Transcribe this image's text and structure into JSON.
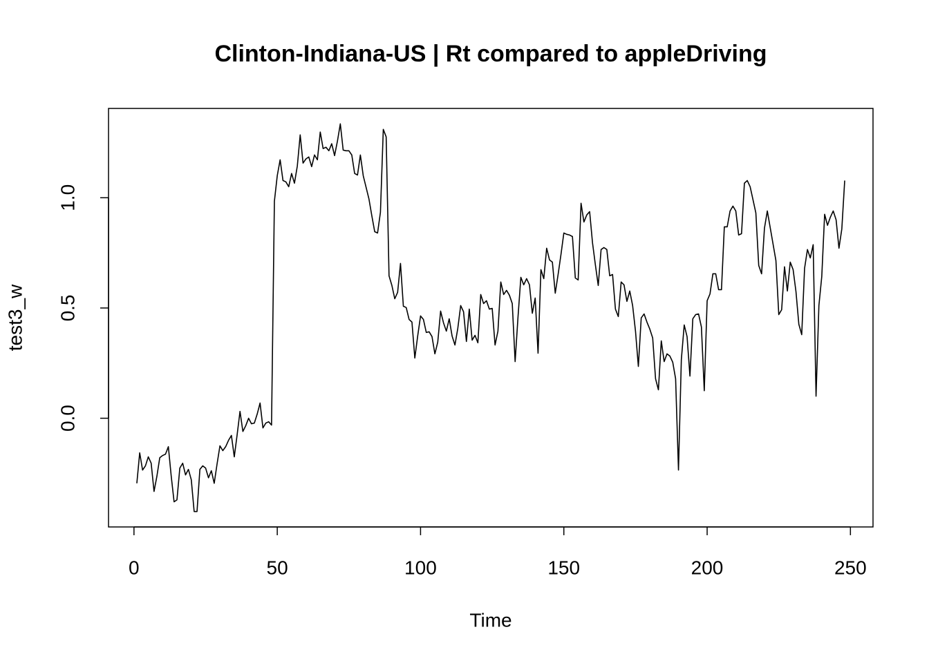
{
  "chart_data": {
    "type": "line",
    "title": "Clinton-Indiana-US | Rt compared to appleDriving",
    "x_label": "Time",
    "y_label": "test3_w",
    "x": [
      1,
      2,
      3,
      4,
      5,
      6,
      7,
      8,
      9,
      10,
      11,
      12,
      13,
      14,
      15,
      16,
      17,
      18,
      19,
      20,
      21,
      22,
      23,
      24,
      25,
      26,
      27,
      28,
      29,
      30,
      31,
      32,
      33,
      34,
      35,
      36,
      37,
      38,
      39,
      40,
      41,
      42,
      43,
      44,
      45,
      46,
      47,
      48,
      49,
      50,
      51,
      52,
      53,
      54,
      55,
      56,
      57,
      58,
      59,
      60,
      61,
      62,
      63,
      64,
      65,
      66,
      67,
      68,
      69,
      70,
      71,
      72,
      73,
      74,
      75,
      76,
      77,
      78,
      79,
      80,
      81,
      82,
      83,
      84,
      85,
      86,
      87,
      88,
      89,
      90,
      91,
      92,
      93,
      94,
      95,
      96,
      97,
      98,
      99,
      100,
      101,
      102,
      103,
      104,
      105,
      106,
      107,
      108,
      109,
      110,
      111,
      112,
      113,
      114,
      115,
      116,
      117,
      118,
      119,
      120,
      121,
      122,
      123,
      124,
      125,
      126,
      127,
      128,
      129,
      130,
      131,
      132,
      133,
      134,
      135,
      136,
      137,
      138,
      139,
      140,
      141,
      142,
      143,
      144,
      145,
      146,
      147,
      148,
      149,
      150,
      151,
      152,
      153,
      154,
      155,
      156,
      157,
      158,
      159,
      160,
      161,
      162,
      163,
      164,
      165,
      166,
      167,
      168,
      169,
      170,
      171,
      172,
      173,
      174,
      175,
      176,
      177,
      178,
      179,
      180,
      181,
      182,
      183,
      184,
      185,
      186,
      187,
      188,
      189,
      190,
      191,
      192,
      193,
      194,
      195,
      196,
      197,
      198,
      199,
      200,
      201,
      202,
      203,
      204,
      205,
      206,
      207,
      208,
      209,
      210,
      211,
      212,
      213,
      214,
      215,
      216,
      217,
      218,
      219,
      220,
      221,
      222,
      223,
      224,
      225,
      226,
      227,
      228,
      229,
      230,
      231,
      232,
      233,
      234,
      235,
      236,
      237,
      238,
      239,
      240,
      241,
      242,
      243,
      244,
      245,
      246,
      247,
      248
    ],
    "series": [
      {
        "name": "test3_w",
        "color": "#000000",
        "values": [
          -0.295,
          -0.157,
          -0.235,
          -0.216,
          -0.175,
          -0.204,
          -0.332,
          -0.263,
          -0.179,
          -0.169,
          -0.163,
          -0.129,
          -0.263,
          -0.379,
          -0.37,
          -0.226,
          -0.204,
          -0.257,
          -0.232,
          -0.279,
          -0.423,
          -0.423,
          -0.232,
          -0.216,
          -0.226,
          -0.27,
          -0.238,
          -0.295,
          -0.207,
          -0.125,
          -0.147,
          -0.129,
          -0.1,
          -0.078,
          -0.175,
          -0.075,
          0.031,
          -0.06,
          -0.034,
          0.0,
          -0.025,
          -0.022,
          0.019,
          0.069,
          -0.044,
          -0.022,
          -0.016,
          -0.031,
          0.984,
          1.1,
          1.172,
          1.078,
          1.072,
          1.05,
          1.11,
          1.066,
          1.144,
          1.285,
          1.157,
          1.176,
          1.185,
          1.141,
          1.194,
          1.172,
          1.298,
          1.223,
          1.229,
          1.213,
          1.245,
          1.191,
          1.257,
          1.335,
          1.216,
          1.213,
          1.213,
          1.194,
          1.11,
          1.103,
          1.194,
          1.1,
          1.047,
          0.994,
          0.918,
          0.846,
          0.84,
          0.934,
          1.31,
          1.276,
          0.646,
          0.602,
          0.542,
          0.571,
          0.702,
          0.508,
          0.502,
          0.448,
          0.436,
          0.273,
          0.373,
          0.464,
          0.448,
          0.389,
          0.392,
          0.37,
          0.292,
          0.345,
          0.486,
          0.433,
          0.395,
          0.451,
          0.373,
          0.332,
          0.408,
          0.511,
          0.483,
          0.348,
          0.495,
          0.354,
          0.376,
          0.342,
          0.561,
          0.52,
          0.533,
          0.495,
          0.498,
          0.332,
          0.395,
          0.618,
          0.561,
          0.58,
          0.558,
          0.52,
          0.257,
          0.458,
          0.639,
          0.605,
          0.633,
          0.605,
          0.476,
          0.545,
          0.295,
          0.674,
          0.633,
          0.771,
          0.718,
          0.708,
          0.567,
          0.652,
          0.743,
          0.84,
          0.834,
          0.831,
          0.824,
          0.636,
          0.627,
          0.975,
          0.89,
          0.922,
          0.937,
          0.796,
          0.696,
          0.602,
          0.765,
          0.774,
          0.765,
          0.646,
          0.652,
          0.495,
          0.461,
          0.618,
          0.605,
          0.53,
          0.577,
          0.511,
          0.395,
          0.235,
          0.455,
          0.473,
          0.436,
          0.404,
          0.364,
          0.179,
          0.129,
          0.351,
          0.257,
          0.292,
          0.282,
          0.254,
          0.179,
          -0.235,
          0.266,
          0.423,
          0.37,
          0.191,
          0.451,
          0.47,
          0.473,
          0.414,
          0.125,
          0.533,
          0.564,
          0.655,
          0.655,
          0.583,
          0.583,
          0.868,
          0.868,
          0.94,
          0.962,
          0.94,
          0.831,
          0.837,
          1.066,
          1.078,
          1.05,
          0.991,
          0.931,
          0.693,
          0.655,
          0.862,
          0.94,
          0.865,
          0.79,
          0.715,
          0.47,
          0.492,
          0.687,
          0.577,
          0.708,
          0.674,
          0.574,
          0.426,
          0.379,
          0.68,
          0.765,
          0.727,
          0.787,
          0.1,
          0.511,
          0.643,
          0.925,
          0.875,
          0.912,
          0.94,
          0.9,
          0.771,
          0.859,
          1.078
        ]
      }
    ],
    "xlim": [
      -8.88,
      257.88
    ],
    "ylim": [
      -0.493,
      1.405
    ],
    "xticks": [
      0,
      50,
      100,
      150,
      200,
      250
    ],
    "yticks": [
      {
        "value": 0,
        "label": "0.0"
      },
      {
        "value": 0.5,
        "label": "0.5"
      },
      {
        "value": 1,
        "label": "1.0"
      }
    ]
  }
}
